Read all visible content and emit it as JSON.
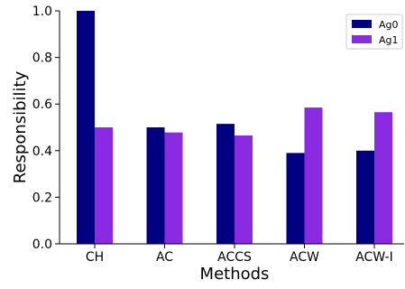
{
  "chart_data": {
    "type": "bar",
    "title": "",
    "xlabel": "Methods",
    "ylabel": "Responsibility",
    "categories": [
      "CH",
      "AC",
      "ACCS",
      "ACW",
      "ACW-I"
    ],
    "series": [
      {
        "name": "Ag0",
        "color": "#000080",
        "values": [
          1.0,
          0.5,
          0.515,
          0.39,
          0.4
        ]
      },
      {
        "name": "Ag1",
        "color": "#8A2BE2",
        "values": [
          0.5,
          0.478,
          0.465,
          0.585,
          0.565
        ]
      }
    ],
    "ylim": [
      0.0,
      1.0
    ],
    "yticks": [
      "0.0",
      "0.2",
      "0.4",
      "0.6",
      "0.8",
      "1.0"
    ],
    "grid": false,
    "legend_position": "top-right"
  }
}
